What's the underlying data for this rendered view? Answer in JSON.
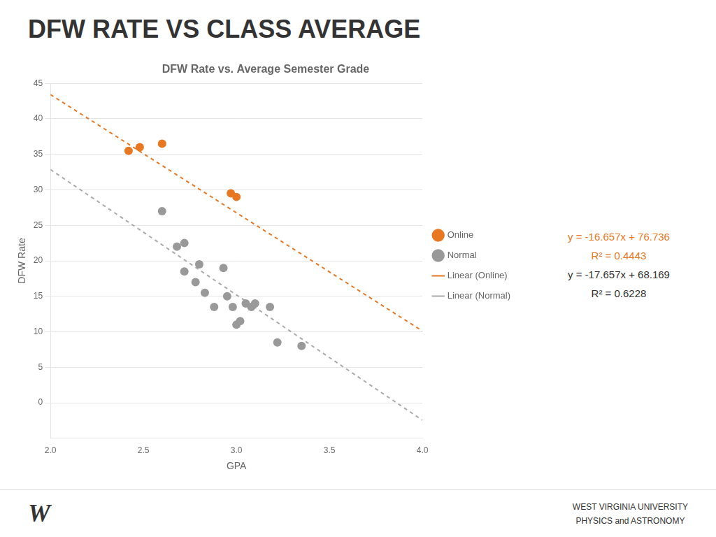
{
  "chart_data": {
    "type": "scatter",
    "title": "DFW RATE VS CLASS AVERAGE",
    "subtitle": "DFW Rate vs. Average Semester Grade",
    "x_label": "GPA",
    "y_label": "DFW Rate",
    "xlim": [
      2.0,
      4.0
    ],
    "ylim": [
      -5,
      45
    ],
    "xticks": [
      {
        "value": 2.0,
        "label": "2.0"
      },
      {
        "value": 2.5,
        "label": "2.5"
      },
      {
        "value": 3.0,
        "label": "3.0"
      },
      {
        "value": 3.5,
        "label": "3.5"
      },
      {
        "value": 4.0,
        "label": "4.0"
      }
    ],
    "yticks": [
      0,
      5,
      10,
      15,
      20,
      25,
      30,
      35,
      40,
      45
    ],
    "grid": "y",
    "legend": "right",
    "series": [
      {
        "name": "Online",
        "type": "scatter",
        "marker": "circle",
        "color": "#E87722",
        "x": [
          2.42,
          2.48,
          2.6,
          2.97,
          3.0
        ],
        "values": [
          35.5,
          36.0,
          36.5,
          29.5,
          29.0
        ]
      },
      {
        "name": "Normal",
        "type": "scatter",
        "marker": "circle",
        "color": "#999999",
        "x": [
          2.6,
          2.68,
          2.72,
          2.72,
          2.78,
          2.8,
          2.83,
          2.88,
          2.93,
          2.95,
          2.98,
          3.0,
          3.02,
          3.05,
          3.08,
          3.1,
          3.18,
          3.22,
          3.35
        ],
        "values": [
          27.0,
          22.0,
          22.5,
          18.5,
          17.0,
          19.5,
          15.5,
          13.5,
          19.0,
          15.0,
          13.5,
          11.0,
          11.5,
          14.0,
          13.5,
          14.0,
          13.5,
          8.5,
          8.0
        ]
      },
      {
        "name": "Linear (Online)",
        "type": "line",
        "line_style": "dashed",
        "color": "#E87722",
        "x": [
          2.0,
          4.0
        ],
        "values": [
          43.422,
          10.108
        ]
      },
      {
        "name": "Linear (Normal)",
        "type": "line",
        "line_style": "dashed",
        "color": "#AAAAAA",
        "x": [
          2.0,
          4.0
        ],
        "values": [
          32.855,
          -2.459
        ]
      }
    ],
    "annotations": [
      {
        "text": "y = -16.657x + 76.736",
        "color": "#E87722"
      },
      {
        "text": "R² = 0.4443",
        "color": "#E87722"
      },
      {
        "text": "y = -17.657x + 68.169"
      },
      {
        "text": "R² = 0.6228"
      }
    ],
    "logo": "W",
    "footer": [
      "WEST VIRGINIA UNIVERSITY",
      "PHYSICS and ASTRONOMY"
    ]
  }
}
